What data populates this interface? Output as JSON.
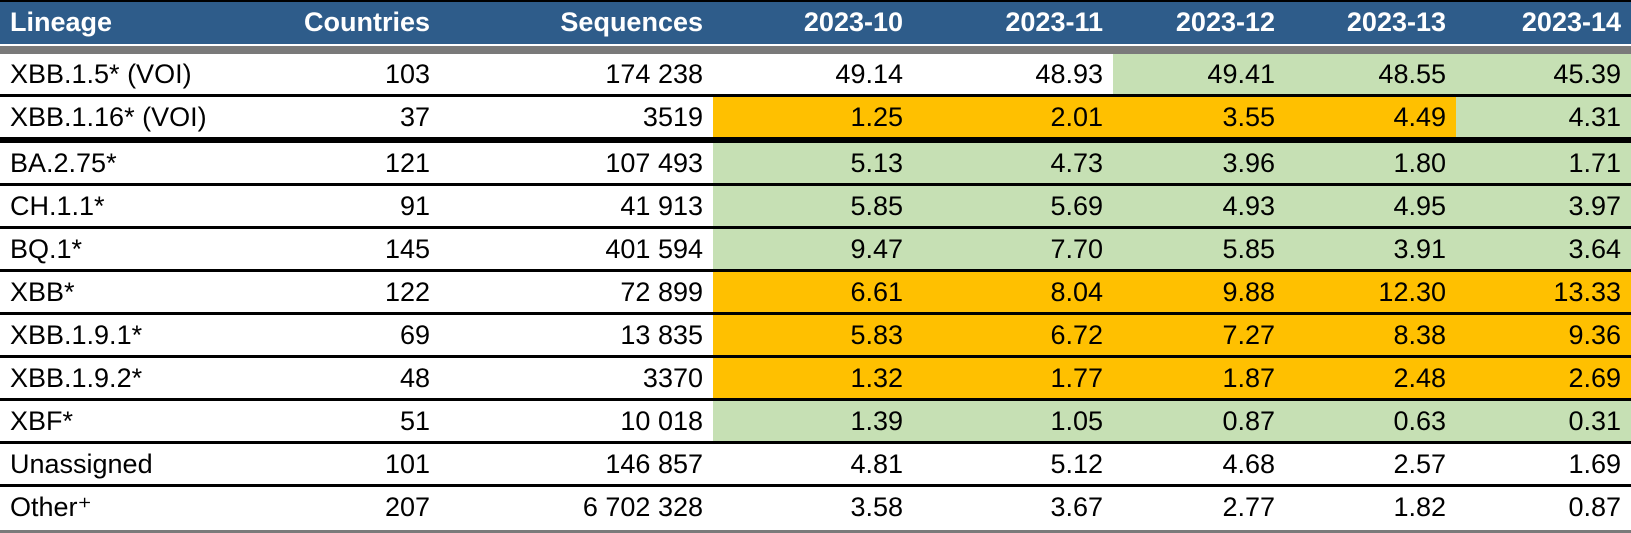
{
  "table": {
    "columns": [
      {
        "key": "lineage",
        "label": "Lineage",
        "align": "left"
      },
      {
        "key": "countries",
        "label": "Countries",
        "align": "right"
      },
      {
        "key": "sequences",
        "label": "Sequences",
        "align": "right"
      },
      {
        "key": "w10",
        "label": "2023-10",
        "align": "right"
      },
      {
        "key": "w11",
        "label": "2023-11",
        "align": "right"
      },
      {
        "key": "w12",
        "label": "2023-12",
        "align": "right"
      },
      {
        "key": "w13",
        "label": "2023-13",
        "align": "right"
      },
      {
        "key": "w14",
        "label": "2023-14",
        "align": "right"
      }
    ],
    "rows": [
      {
        "lineage": "XBB.1.5* (VOI)",
        "countries": "103",
        "sequences": "174 238",
        "values": [
          "49.14",
          "48.93",
          "49.41",
          "48.55",
          "45.39"
        ],
        "fills": [
          "none",
          "none",
          "green",
          "green",
          "green"
        ],
        "thick_bottom": false
      },
      {
        "lineage": "XBB.1.16* (VOI)",
        "countries": "37",
        "sequences": "3519",
        "values": [
          "1.25",
          "2.01",
          "3.55",
          "4.49",
          "4.31"
        ],
        "fills": [
          "orange",
          "orange",
          "orange",
          "orange",
          "green"
        ],
        "thick_bottom": true
      },
      {
        "lineage": "BA.2.75*",
        "countries": "121",
        "sequences": "107 493",
        "values": [
          "5.13",
          "4.73",
          "3.96",
          "1.80",
          "1.71"
        ],
        "fills": [
          "green",
          "green",
          "green",
          "green",
          "green"
        ],
        "thick_bottom": false
      },
      {
        "lineage": "CH.1.1*",
        "countries": "91",
        "sequences": "41 913",
        "values": [
          "5.85",
          "5.69",
          "4.93",
          "4.95",
          "3.97"
        ],
        "fills": [
          "green",
          "green",
          "green",
          "green",
          "green"
        ],
        "thick_bottom": false
      },
      {
        "lineage": "BQ.1*",
        "countries": "145",
        "sequences": "401 594",
        "values": [
          "9.47",
          "7.70",
          "5.85",
          "3.91",
          "3.64"
        ],
        "fills": [
          "green",
          "green",
          "green",
          "green",
          "green"
        ],
        "thick_bottom": false
      },
      {
        "lineage": "XBB*",
        "countries": "122",
        "sequences": "72 899",
        "values": [
          "6.61",
          "8.04",
          "9.88",
          "12.30",
          "13.33"
        ],
        "fills": [
          "orange",
          "orange",
          "orange",
          "orange",
          "orange"
        ],
        "thick_bottom": false
      },
      {
        "lineage": "XBB.1.9.1*",
        "countries": "69",
        "sequences": "13 835",
        "values": [
          "5.83",
          "6.72",
          "7.27",
          "8.38",
          "9.36"
        ],
        "fills": [
          "orange",
          "orange",
          "orange",
          "orange",
          "orange"
        ],
        "thick_bottom": false
      },
      {
        "lineage": "XBB.1.9.2*",
        "countries": "48",
        "sequences": "3370",
        "values": [
          "1.32",
          "1.77",
          "1.87",
          "2.48",
          "2.69"
        ],
        "fills": [
          "orange",
          "orange",
          "orange",
          "orange",
          "orange"
        ],
        "thick_bottom": false
      },
      {
        "lineage": "XBF*",
        "countries": "51",
        "sequences": "10 018",
        "values": [
          "1.39",
          "1.05",
          "0.87",
          "0.63",
          "0.31"
        ],
        "fills": [
          "green",
          "green",
          "green",
          "green",
          "green"
        ],
        "thick_bottom": false
      },
      {
        "lineage": "Unassigned",
        "countries": "101",
        "sequences": "146 857",
        "values": [
          "4.81",
          "5.12",
          "4.68",
          "2.57",
          "1.69"
        ],
        "fills": [
          "none",
          "none",
          "none",
          "none",
          "none"
        ],
        "thick_bottom": false
      },
      {
        "lineage": "Other⁺",
        "countries": "207",
        "sequences": "6 702 328",
        "values": [
          "3.58",
          "3.67",
          "2.77",
          "1.82",
          "0.87"
        ],
        "fills": [
          "none",
          "none",
          "none",
          "none",
          "none"
        ],
        "thick_bottom": false
      }
    ]
  },
  "colors": {
    "header_bg": "#2E5C8A",
    "header_text": "#FFFFFF",
    "separator": "#7A7A7A",
    "green": "#C6E0B4",
    "orange": "#FFC000",
    "row_border": "#000000",
    "cell_text": "#000000"
  }
}
